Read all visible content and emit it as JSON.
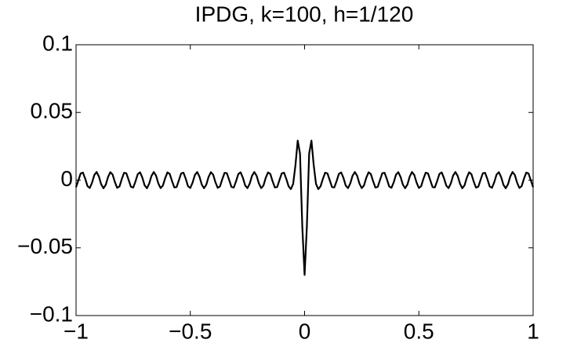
{
  "chart_data": {
    "type": "line",
    "title": "IPDG, k=100, h=1/120",
    "x": [
      -1,
      -0.99,
      -0.98,
      -0.97,
      -0.96,
      -0.95,
      -0.94,
      -0.93,
      -0.92,
      -0.91,
      -0.9,
      -0.89,
      -0.88,
      -0.87,
      -0.86,
      -0.85,
      -0.84,
      -0.83,
      -0.82,
      -0.81,
      -0.8,
      -0.79,
      -0.78,
      -0.77,
      -0.76,
      -0.75,
      -0.74,
      -0.73,
      -0.72,
      -0.71,
      -0.7,
      -0.69,
      -0.68,
      -0.67,
      -0.66,
      -0.65,
      -0.64,
      -0.63,
      -0.62,
      -0.61,
      -0.6,
      -0.59,
      -0.58,
      -0.57,
      -0.56,
      -0.55,
      -0.54,
      -0.53,
      -0.52,
      -0.51,
      -0.5,
      -0.49,
      -0.48,
      -0.47,
      -0.46,
      -0.45,
      -0.44,
      -0.43,
      -0.42,
      -0.41,
      -0.4,
      -0.39,
      -0.38,
      -0.37,
      -0.36,
      -0.35,
      -0.34,
      -0.33,
      -0.32,
      -0.31,
      -0.3,
      -0.29,
      -0.28,
      -0.27,
      -0.26,
      -0.25,
      -0.24,
      -0.23,
      -0.22,
      -0.21,
      -0.2,
      -0.19,
      -0.18,
      -0.17,
      -0.16,
      -0.15,
      -0.14,
      -0.13,
      -0.12,
      -0.11,
      -0.1,
      -0.09,
      -0.08,
      -0.07,
      -0.06,
      -0.05,
      -0.04,
      -0.03,
      -0.02,
      -0.01,
      0,
      0.01,
      0.02,
      0.03,
      0.04,
      0.05,
      0.06,
      0.07,
      0.08,
      0.09,
      0.1,
      0.11,
      0.12,
      0.13,
      0.14,
      0.15,
      0.16,
      0.17,
      0.18,
      0.19,
      0.2,
      0.21,
      0.22,
      0.23,
      0.24,
      0.25,
      0.26,
      0.27,
      0.28,
      0.29,
      0.3,
      0.31,
      0.32,
      0.33,
      0.34,
      0.35,
      0.36,
      0.37,
      0.38,
      0.39,
      0.4,
      0.41,
      0.42,
      0.43,
      0.44,
      0.45,
      0.46,
      0.47,
      0.48,
      0.49,
      0.5,
      0.51,
      0.52,
      0.53,
      0.54,
      0.55,
      0.56,
      0.57,
      0.58,
      0.59,
      0.6,
      0.61,
      0.62,
      0.63,
      0.64,
      0.65,
      0.66,
      0.67,
      0.68,
      0.69,
      0.7,
      0.71,
      0.72,
      0.73,
      0.74,
      0.75,
      0.76,
      0.77,
      0.78,
      0.79,
      0.8,
      0.81,
      0.82,
      0.83,
      0.84,
      0.85,
      0.86,
      0.87,
      0.88,
      0.89,
      0.9,
      0.91,
      0.92,
      0.93,
      0.94,
      0.95,
      0.96,
      0.97,
      0.98,
      0.99,
      1
    ],
    "series": [
      {
        "color": "#000000",
        "values": [
          -0.0052,
          -0.0002,
          0.0049,
          0.0056,
          0.0011,
          -0.0044,
          -0.0058,
          -0.0019,
          0.0038,
          0.006,
          0.0027,
          -0.0031,
          -0.006,
          -0.0034,
          0.0023,
          0.0059,
          0.0041,
          -0.0015,
          -0.0057,
          -0.0047,
          0.0007,
          0.0054,
          0.0051,
          0.0002,
          -0.0049,
          -0.0055,
          -0.001,
          0.0044,
          0.0058,
          0.0019,
          -0.0038,
          -0.006,
          -0.0026,
          0.0031,
          0.006,
          0.0034,
          -0.0024,
          -0.0059,
          -0.004,
          0.0015,
          0.0057,
          0.0046,
          -0.0007,
          -0.0054,
          -0.0051,
          -0.0001,
          0.005,
          0.0055,
          0.001,
          -0.0045,
          -0.0058,
          -0.0018,
          0.0038,
          0.006,
          0.0026,
          -0.0032,
          -0.006,
          -0.0033,
          0.0024,
          0.0059,
          0.004,
          -0.0016,
          -0.0057,
          -0.0046,
          0.0008,
          0.0054,
          0.0051,
          0.0001,
          -0.005,
          -0.0055,
          -0.0009,
          0.0045,
          0.0058,
          0.0018,
          -0.0039,
          -0.0059,
          -0.0025,
          0.0032,
          0.006,
          0.0033,
          -0.0024,
          -0.0059,
          -0.004,
          0.0017,
          0.0057,
          0.0046,
          -0.0008,
          -0.0054,
          -0.0051,
          0,
          0.005,
          0.0055,
          0.0009,
          -0.0045,
          -0.0066,
          -0.0028,
          0.011,
          0.0292,
          0.0196,
          -0.0342,
          -0.07,
          -0.0342,
          0.0196,
          0.0292,
          0.011,
          -0.0028,
          -0.0066,
          -0.0045,
          0.0009,
          0.0055,
          0.005,
          0,
          -0.0051,
          -0.0054,
          -0.0008,
          0.0046,
          0.0057,
          0.0017,
          -0.004,
          -0.0059,
          -0.0024,
          0.0033,
          0.006,
          0.0032,
          -0.0025,
          -0.0059,
          -0.0039,
          0.0018,
          0.0058,
          0.0045,
          -0.0009,
          -0.0055,
          -0.005,
          0.0001,
          0.0051,
          0.0054,
          0.0008,
          -0.0046,
          -0.0057,
          -0.0016,
          0.004,
          0.0059,
          0.0024,
          -0.0033,
          -0.006,
          -0.0032,
          0.0026,
          0.006,
          0.0038,
          -0.0018,
          -0.0058,
          -0.0045,
          0.001,
          0.0055,
          0.005,
          -0.0001,
          -0.0051,
          -0.0054,
          -0.0007,
          0.0046,
          0.0057,
          0.0015,
          -0.004,
          -0.0059,
          -0.0024,
          0.0034,
          0.006,
          0.0031,
          -0.0026,
          -0.006,
          -0.0038,
          0.0019,
          0.0058,
          0.0044,
          -0.001,
          -0.0055,
          -0.0049,
          0.0002,
          0.0051,
          0.0054,
          0.0007,
          -0.0047,
          -0.0057,
          -0.0015,
          0.0041,
          0.0059,
          0.0023,
          -0.0034,
          -0.006,
          -0.0031,
          0.0027,
          0.006,
          0.0038,
          -0.0019,
          -0.0058,
          -0.0044,
          0.0011,
          0.0056,
          0.0049,
          -0.0002,
          -0.0052
        ]
      }
    ],
    "xlim": [
      -1,
      1
    ],
    "xticks": [
      {
        "value": -1,
        "label": "−1"
      },
      {
        "value": -0.5,
        "label": "−0.5"
      },
      0,
      0.5,
      1
    ],
    "ylim": [
      -0.1,
      0.1
    ],
    "yticks": [
      {
        "value": -0.1,
        "label": "−0.1"
      },
      {
        "value": -0.05,
        "label": "−0.05"
      },
      0,
      0.05,
      0.1
    ],
    "grid": false
  }
}
